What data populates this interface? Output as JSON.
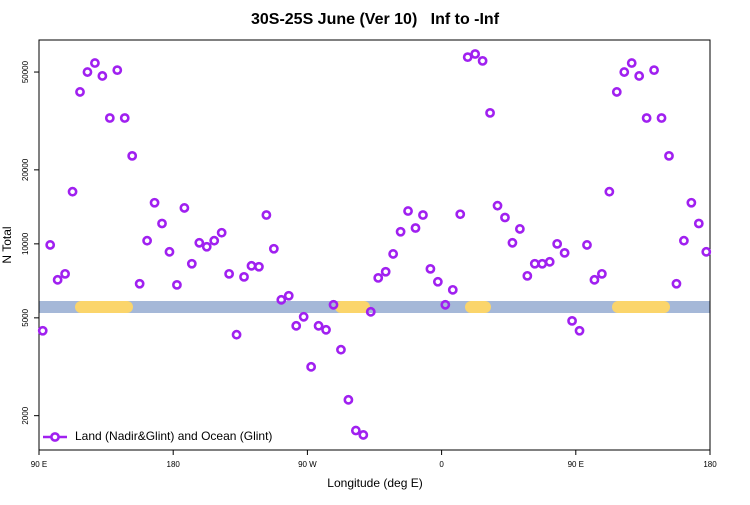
{
  "chart_data": {
    "type": "scatter",
    "title": "30S-25S June (Ver 10)   Inf to -Inf",
    "x_label": "Longitude (deg E)",
    "y_label": "N Total",
    "xlim": [
      90,
      540
    ],
    "xticks": [
      {
        "value": 90,
        "label": "90 E"
      },
      {
        "value": 180,
        "label": "180"
      },
      {
        "value": 270,
        "label": "90 W"
      },
      {
        "value": 360,
        "label": "0"
      },
      {
        "value": 450,
        "label": "90 E"
      },
      {
        "value": 540,
        "label": "180"
      }
    ],
    "ylim": [
      1450,
      67500
    ],
    "log_y": true,
    "yticks": [
      2000,
      5000,
      10000,
      20000,
      50000
    ],
    "legend": "bottom-left",
    "x": [
      92.5,
      97.5,
      102.5,
      107.5,
      112.5,
      117.5,
      122.5,
      127.5,
      132.5,
      137.5,
      142.5,
      147.5,
      152.5,
      157.5,
      162.5,
      167.5,
      172.5,
      177.5,
      182.5,
      187.5,
      192.5,
      197.5,
      202.5,
      207.5,
      212.5,
      217.5,
      222.5,
      227.5,
      232.5,
      237.5,
      242.5,
      247.5,
      252.5,
      257.5,
      262.5,
      267.5,
      272.5,
      277.5,
      282.5,
      287.5,
      292.5,
      297.5,
      302.5,
      307.5,
      312.5,
      317.5,
      322.5,
      327.5,
      332.5,
      337.5,
      342.5,
      347.5,
      352.5,
      357.5,
      362.5,
      367.5,
      372.5,
      377.5,
      382.5,
      387.5,
      392.5,
      397.5,
      402.5,
      407.5,
      412.5,
      417.5,
      422.5,
      427.5,
      432.5,
      437.5,
      442.5,
      447.5,
      452.5,
      457.5,
      462.5,
      467.5,
      472.5,
      477.5,
      482.5,
      487.5,
      492.5,
      497.5,
      502.5,
      507.5,
      512.5,
      517.5,
      522.5,
      527.5,
      532.5,
      537.5
    ],
    "series": [
      {
        "name": "Land (Nadir&Glint) and Ocean (Glint)",
        "color": "#a020f0",
        "values": [
          4430,
          9900,
          7140,
          7550,
          16300,
          41500,
          50000,
          54400,
          48200,
          32500,
          50900,
          32500,
          22800,
          6880,
          10300,
          14700,
          12100,
          9280,
          6810,
          14000,
          8300,
          10100,
          9730,
          10300,
          11100,
          7550,
          4270,
          7340,
          8140,
          8070,
          13100,
          9550,
          5920,
          6150,
          4640,
          5050,
          3160,
          4640,
          4470,
          5650,
          3710,
          2320,
          1740,
          1670,
          5290,
          7270,
          7700,
          9100,
          11200,
          13600,
          11600,
          13100,
          7910,
          7010,
          5650,
          6500,
          13200,
          57500,
          59200,
          55500,
          34100,
          14300,
          12800,
          10100,
          11500,
          7410,
          8300,
          8300,
          8450,
          10000,
          9190,
          4860,
          4430,
          9900,
          7140,
          7550,
          16300,
          41500,
          50000,
          54400,
          48200,
          32500,
          50900,
          32500,
          22800,
          6880,
          10300,
          14700,
          12100,
          9280
        ]
      }
    ]
  }
}
